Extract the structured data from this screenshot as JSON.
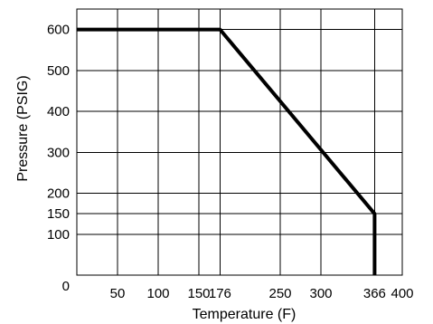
{
  "chart_data": {
    "type": "line",
    "title": "",
    "xlabel": "Temperature (F)",
    "ylabel": "Pressure (PSIG)",
    "xlim": [
      0,
      400
    ],
    "ylim": [
      0,
      650
    ],
    "x_ticks": [
      50,
      100,
      150,
      176,
      250,
      300,
      366,
      400
    ],
    "x_tick_labels": [
      "50",
      "100",
      "150",
      "176",
      "250",
      "300",
      "366",
      "400"
    ],
    "y_ticks": [
      0,
      100,
      150,
      200,
      300,
      400,
      500,
      600
    ],
    "y_tick_labels": [
      "0",
      "100",
      "150",
      "200",
      "300",
      "400",
      "500",
      "600"
    ],
    "x_grid": [
      50,
      100,
      150,
      176,
      250,
      300,
      366
    ],
    "y_grid": [
      100,
      150,
      200,
      300,
      400,
      500,
      600
    ],
    "grid": true,
    "series": [
      {
        "x": [
          0,
          176,
          366,
          366
        ],
        "y": [
          600,
          600,
          150,
          0
        ],
        "color": "#000000"
      }
    ]
  }
}
